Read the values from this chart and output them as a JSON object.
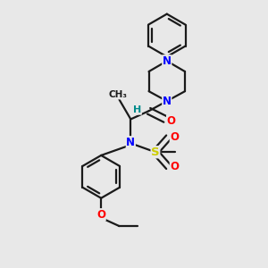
{
  "background_color": "#e8e8e8",
  "bond_color": "#1a1a1a",
  "N_color": "#0000ff",
  "O_color": "#ff0000",
  "S_color": "#cccc00",
  "H_color": "#008b8b",
  "figsize": [
    3.0,
    3.0
  ],
  "dpi": 100,
  "xlim": [
    -2.5,
    3.5
  ],
  "ylim": [
    -4.5,
    3.5
  ]
}
